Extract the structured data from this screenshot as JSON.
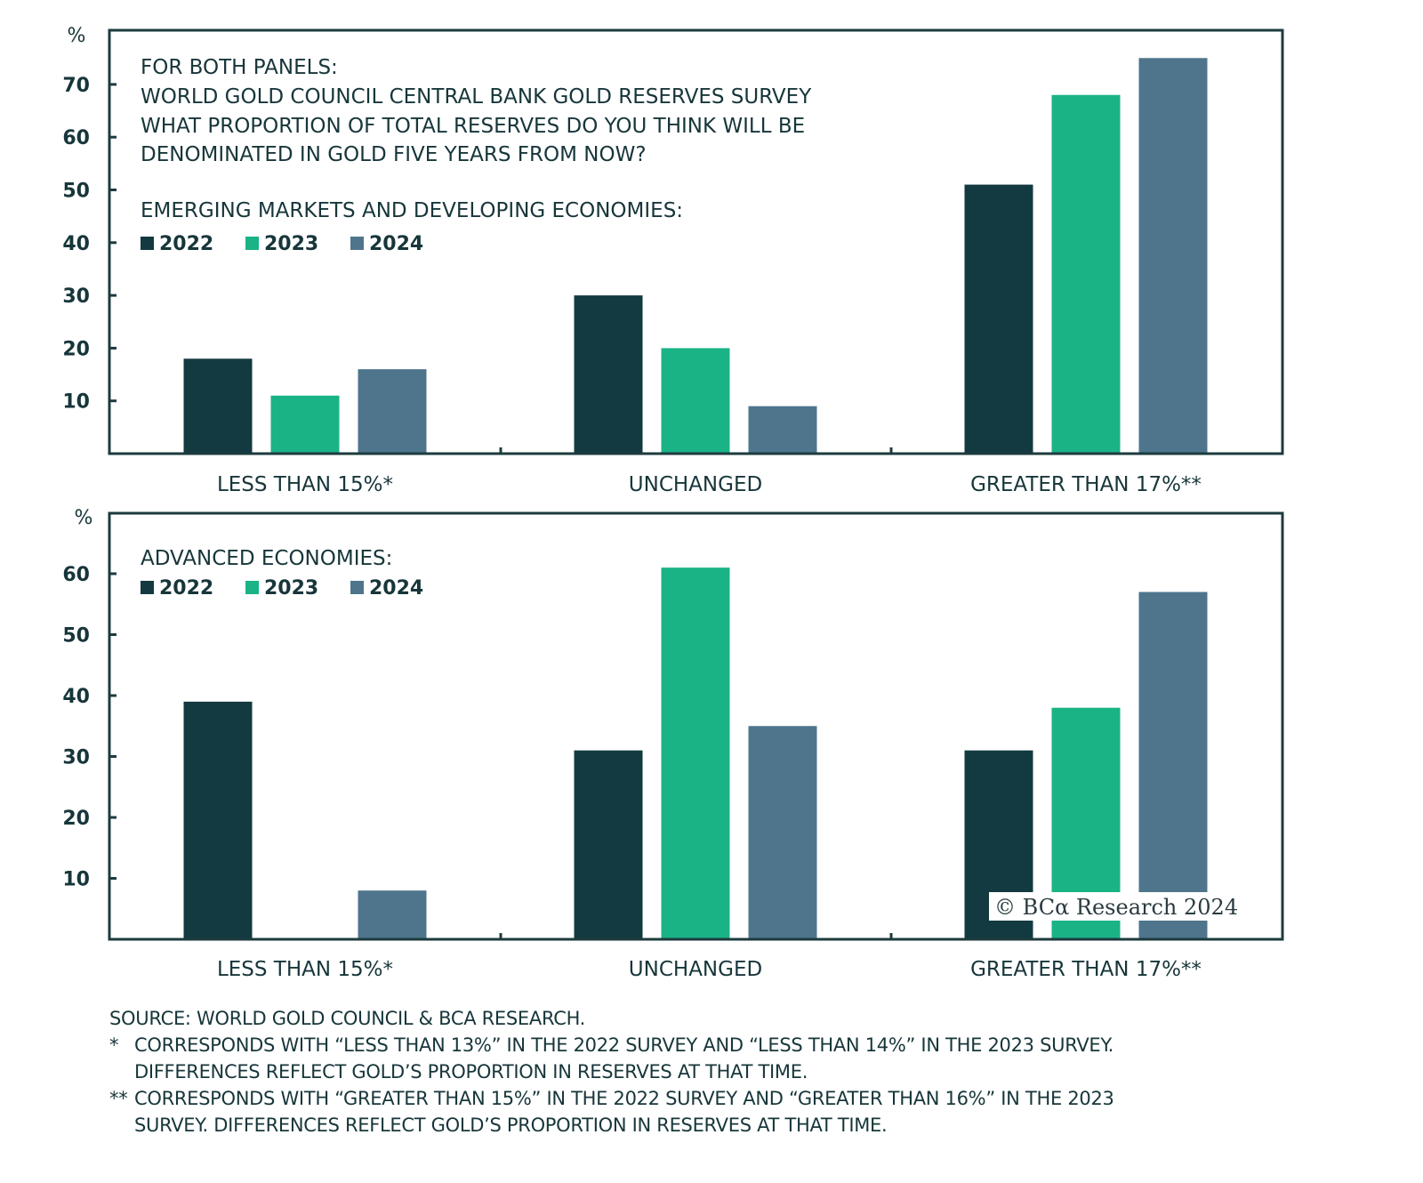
{
  "colors": {
    "2022": "#133a40",
    "2023": "#1ab386",
    "2024": "#4e758c",
    "axis": "#1d3b3e"
  },
  "header": {
    "line1": "FOR BOTH PANELS:",
    "line2": "WORLD GOLD COUNCIL CENTRAL BANK GOLD RESERVES SURVEY",
    "line3": "WHAT PROPORTION OF TOTAL RESERVES DO YOU THINK WILL BE",
    "line4": "DENOMINATED IN GOLD FIVE YEARS FROM NOW?"
  },
  "chart_data": [
    {
      "type": "bar",
      "title": "EMERGING MARKETS AND DEVELOPING ECONOMIES:",
      "ylabel": "%",
      "ylim": [
        0,
        80
      ],
      "yticks": [
        10,
        20,
        30,
        40,
        50,
        60,
        70
      ],
      "categories": [
        "LESS THAN 15%*",
        "UNCHANGED",
        "GREATER THAN 17%**"
      ],
      "series": [
        {
          "name": "2022",
          "values": [
            18,
            30,
            51
          ]
        },
        {
          "name": "2023",
          "values": [
            11,
            20,
            68
          ]
        },
        {
          "name": "2024",
          "values": [
            16,
            9,
            75
          ]
        }
      ],
      "legend": "top-left",
      "grid": false
    },
    {
      "type": "bar",
      "title": "ADVANCED ECONOMIES:",
      "ylabel": "%",
      "ylim": [
        0,
        70
      ],
      "yticks": [
        10,
        20,
        30,
        40,
        50,
        60
      ],
      "categories": [
        "LESS THAN 15%*",
        "UNCHANGED",
        "GREATER THAN 17%**"
      ],
      "series": [
        {
          "name": "2022",
          "values": [
            39,
            31,
            31
          ]
        },
        {
          "name": "2023",
          "values": [
            0,
            61,
            38
          ]
        },
        {
          "name": "2024",
          "values": [
            8,
            35,
            57
          ]
        }
      ],
      "legend": "top-left",
      "grid": false
    }
  ],
  "watermark": "© BCα Research 2024",
  "footer": {
    "source": "SOURCE: WORLD GOLD COUNCIL & BCA RESEARCH.",
    "note1_mark": "*",
    "note1_line1": "CORRESPONDS WITH “LESS THAN 13%” IN THE 2022 SURVEY AND “LESS THAN 14%” IN THE 2023 SURVEY.",
    "note1_line2": "DIFFERENCES REFLECT GOLD’S PROPORTION IN RESERVES AT THAT TIME.",
    "note2_mark": "**",
    "note2_line1": "CORRESPONDS WITH “GREATER THAN 15%” IN THE 2022 SURVEY AND “GREATER THAN 16%” IN THE 2023",
    "note2_line2": "SURVEY. DIFFERENCES REFLECT GOLD’S PROPORTION IN RESERVES AT THAT TIME."
  }
}
